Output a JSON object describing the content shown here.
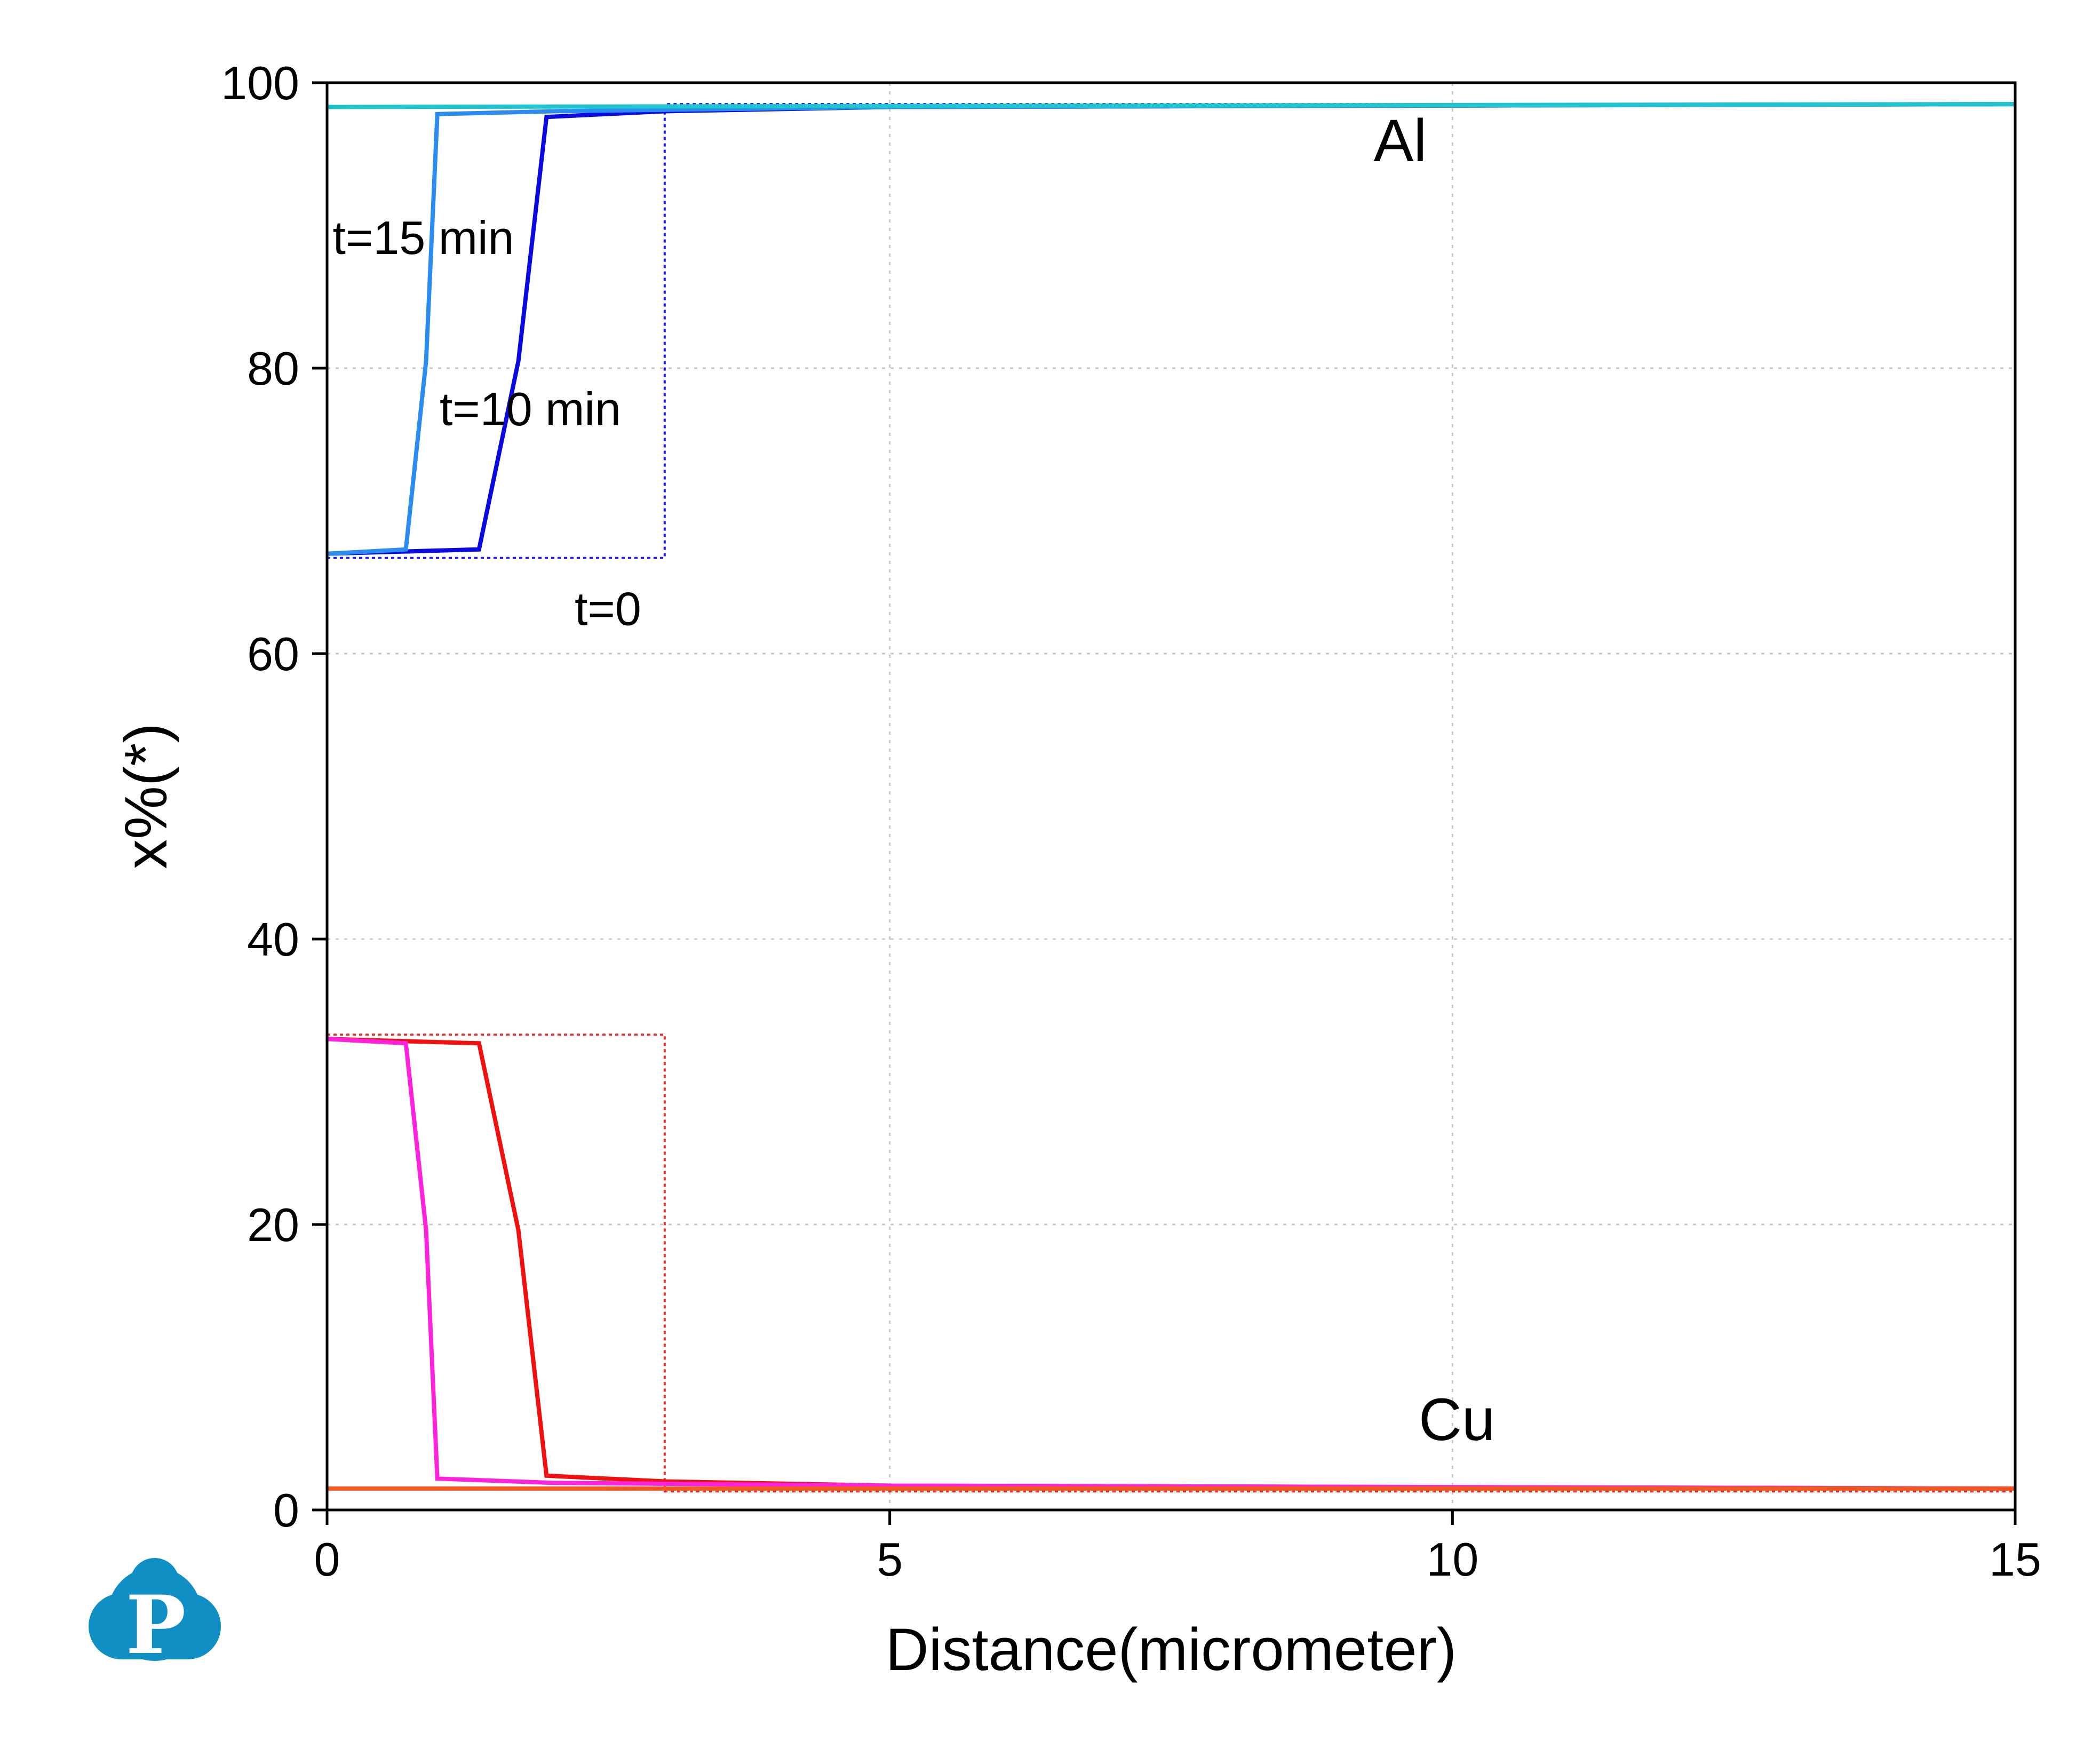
{
  "chart_data": {
    "type": "line",
    "xlabel": "Distance(micrometer)",
    "ylabel": "x%(*)",
    "xlim": [
      0,
      15
    ],
    "ylim": [
      0,
      100
    ],
    "xticks": [
      0,
      5,
      10,
      15
    ],
    "yticks": [
      0,
      20,
      40,
      60,
      80,
      100
    ],
    "grid": true,
    "series": [
      {
        "group": "Al",
        "time": "t=0",
        "style": "dotted",
        "color": "#1a1aff",
        "x": [
          0,
          3.0,
          3.0,
          15
        ],
        "y": [
          66.7,
          66.7,
          98.5,
          98.5
        ]
      },
      {
        "group": "Al",
        "time": "t=10 min",
        "style": "solid",
        "color": "#0a0ae0",
        "x": [
          0,
          1.35,
          1.7,
          1.95,
          3.0,
          5,
          10,
          15
        ],
        "y": [
          67.0,
          67.3,
          80.5,
          97.6,
          98.0,
          98.3,
          98.4,
          98.5
        ]
      },
      {
        "group": "Al",
        "time": "t=15 min",
        "style": "solid",
        "color": "#2b8cf0",
        "x": [
          0,
          0.7,
          0.88,
          0.98,
          2.0,
          5,
          10,
          15
        ],
        "y": [
          67.0,
          67.3,
          80.5,
          97.8,
          98.0,
          98.3,
          98.4,
          98.5
        ]
      },
      {
        "group": "Al",
        "time": "",
        "style": "solid",
        "color": "#1fc4cf",
        "x": [
          0,
          15
        ],
        "y": [
          98.3,
          98.5
        ]
      },
      {
        "group": "Cu",
        "time": "t=0",
        "style": "dotted",
        "color": "#e8302a",
        "x": [
          0,
          3.0,
          3.0,
          15
        ],
        "y": [
          33.3,
          33.3,
          1.3,
          1.3
        ]
      },
      {
        "group": "Cu",
        "time": "t=10 min",
        "style": "solid",
        "color": "#f01010",
        "x": [
          0,
          1.35,
          1.7,
          1.95,
          3.0,
          5,
          10,
          15
        ],
        "y": [
          33.0,
          32.7,
          19.6,
          2.4,
          2.0,
          1.7,
          1.6,
          1.5
        ]
      },
      {
        "group": "Cu",
        "time": "t=15 min",
        "style": "solid",
        "color": "#ff22dd",
        "x": [
          0,
          0.7,
          0.88,
          0.98,
          2.0,
          5,
          10,
          15
        ],
        "y": [
          33.0,
          32.7,
          19.6,
          2.2,
          1.9,
          1.7,
          1.6,
          1.5
        ]
      },
      {
        "group": "Cu",
        "time": "",
        "style": "solid",
        "color": "#f05a22",
        "x": [
          0,
          15
        ],
        "y": [
          1.5,
          1.5
        ]
      }
    ],
    "annotations": [
      {
        "text": "Al",
        "x": 9.3,
        "y": 94.5,
        "size": "large"
      },
      {
        "text": "Cu",
        "x": 9.7,
        "y": 4.9,
        "size": "large"
      },
      {
        "text": "t=15 min",
        "x": 0.05,
        "y": 88.0,
        "size": "small"
      },
      {
        "text": "t=10 min",
        "x": 1.0,
        "y": 76.0,
        "size": "small"
      },
      {
        "text": "t=0",
        "x": 2.2,
        "y": 62.0,
        "size": "small"
      }
    ]
  },
  "logo": {
    "name": "company-logo",
    "letter": "P",
    "color": "#0f8fc4"
  }
}
